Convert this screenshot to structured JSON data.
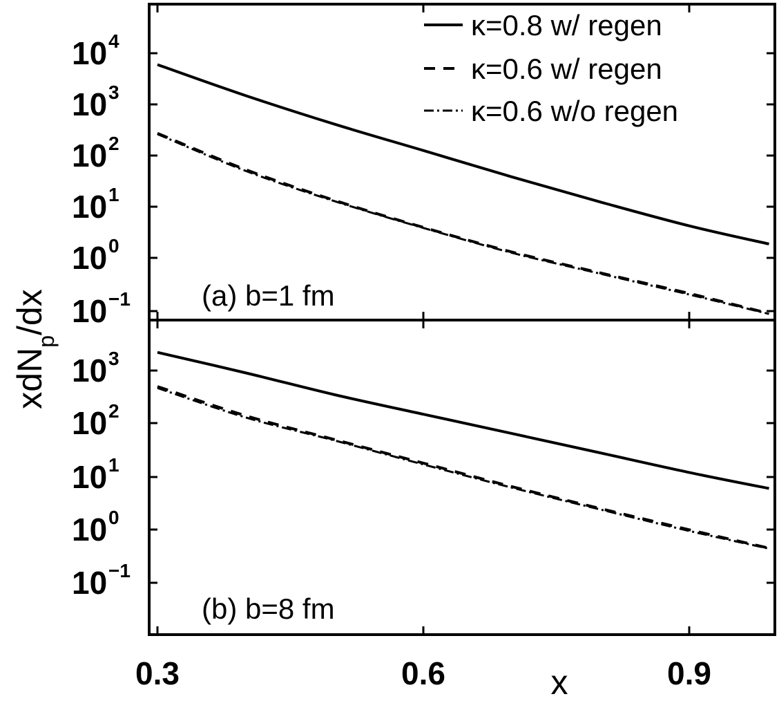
{
  "chart_data": [
    {
      "type": "line",
      "panel_label": "(a) b=1 fm",
      "y_scale": "log",
      "xlim": [
        0.29,
        1.0
      ],
      "ylim": [
        0.04,
        100000
      ],
      "x_ticks": [
        "0.3",
        "0.6",
        "0.9"
      ],
      "y_ticks": [
        {
          "base": "10",
          "exp": "−1"
        },
        {
          "base": "10",
          "exp": "0"
        },
        {
          "base": "10",
          "exp": "1"
        },
        {
          "base": "10",
          "exp": "2"
        },
        {
          "base": "10",
          "exp": "3"
        },
        {
          "base": "10",
          "exp": "4"
        }
      ],
      "x": [
        0.3,
        0.4,
        0.5,
        0.6,
        0.7,
        0.8,
        0.9,
        0.99
      ],
      "series": [
        {
          "name": "κ=0.8 w/ regen",
          "style": "solid",
          "values": [
            6000,
            1500,
            420,
            130,
            40,
            13,
            4.5,
            2.0
          ]
        },
        {
          "name": "κ=0.6 w/ regen",
          "style": "dashed",
          "values": [
            280,
            55,
            14,
            4.2,
            1.4,
            0.55,
            0.22,
            0.09
          ]
        },
        {
          "name": "κ=0.6 w/o regen",
          "style": "dashdot",
          "values": [
            270,
            52,
            13.5,
            4.1,
            1.35,
            0.53,
            0.21,
            0.088
          ]
        }
      ]
    },
    {
      "type": "line",
      "panel_label": "(b) b=8 fm",
      "y_scale": "log",
      "xlim": [
        0.29,
        1.0
      ],
      "ylim": [
        0.01,
        10000
      ],
      "x_ticks": [
        "0.3",
        "0.6",
        "0.9"
      ],
      "y_ticks": [
        {
          "base": "10",
          "exp": "−1"
        },
        {
          "base": "10",
          "exp": "0"
        },
        {
          "base": "10",
          "exp": "1"
        },
        {
          "base": "10",
          "exp": "2"
        },
        {
          "base": "10",
          "exp": "3"
        }
      ],
      "x": [
        0.3,
        0.4,
        0.5,
        0.6,
        0.7,
        0.8,
        0.9,
        0.99
      ],
      "series": [
        {
          "name": "κ=0.8 w/ regen",
          "style": "solid",
          "values": [
            2200,
            900,
            350,
            150,
            65,
            28,
            12,
            6
          ]
        },
        {
          "name": "κ=0.6 w/ regen",
          "style": "dashed",
          "values": [
            500,
            140,
            50,
            18,
            6.5,
            2.5,
            1.0,
            0.45
          ]
        },
        {
          "name": "κ=0.6 w/o regen",
          "style": "dashdot",
          "values": [
            470,
            130,
            48,
            17,
            6.2,
            2.4,
            0.95,
            0.44
          ]
        }
      ]
    }
  ],
  "axes": {
    "ylabel_main": "xdN",
    "ylabel_sub": "p",
    "ylabel_tail": "/dx",
    "xlabel": "x"
  },
  "legend": {
    "position": "top-right",
    "items": [
      {
        "label": "κ=0.8 w/ regen",
        "style": "solid"
      },
      {
        "label": "κ=0.6 w/ regen",
        "style": "dashed"
      },
      {
        "label": "κ=0.6 w/o regen",
        "style": "dashdot"
      }
    ]
  },
  "colors": {
    "line": "#000000",
    "background": "#ffffff"
  }
}
